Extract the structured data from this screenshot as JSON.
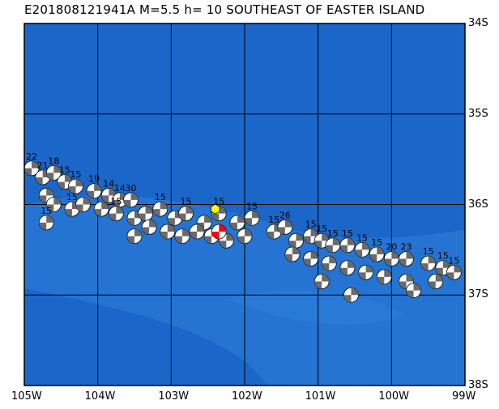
{
  "title": "E201808121941A M=5.5 h= 10 SOUTHEAST OF EASTER ISLAND",
  "colors": {
    "ocean_deep": "#1b66c9",
    "ocean_shallow": "#2a7ad6",
    "grid": "#000000",
    "mechanism_fill": "#6a6a6a",
    "mechanism_light": "#ffffff",
    "mainshock": "#ff0000",
    "highlight": "#ffff00"
  },
  "axes": {
    "lon_labels": [
      "105W",
      "104W",
      "103W",
      "102W",
      "101W",
      "100W",
      "99W"
    ],
    "lat_labels": [
      "34S",
      "35S",
      "36S",
      "37S",
      "38S"
    ],
    "lon_range": [
      -105,
      -99
    ],
    "lat_range": [
      -38,
      -34
    ]
  },
  "events": [
    {
      "lon": -104.9,
      "lat": -35.6,
      "label": "22"
    },
    {
      "lon": -104.75,
      "lat": -35.7,
      "label": "21"
    },
    {
      "lon": -104.6,
      "lat": -35.65,
      "label": "18"
    },
    {
      "lon": -104.45,
      "lat": -35.75,
      "label": "15"
    },
    {
      "lon": -104.7,
      "lat": -35.9,
      "label": ""
    },
    {
      "lon": -104.3,
      "lat": -35.8,
      "label": "15"
    },
    {
      "lon": -104.05,
      "lat": -35.85,
      "label": "19"
    },
    {
      "lon": -103.85,
      "lat": -35.9,
      "label": "14"
    },
    {
      "lon": -103.7,
      "lat": -35.95,
      "label": "14"
    },
    {
      "lon": -103.55,
      "lat": -35.95,
      "label": "30"
    },
    {
      "lon": -104.6,
      "lat": -36.0,
      "label": ""
    },
    {
      "lon": -104.35,
      "lat": -36.05,
      "label": "15"
    },
    {
      "lon": -104.2,
      "lat": -36.0,
      "label": ""
    },
    {
      "lon": -103.95,
      "lat": -36.05,
      "label": ""
    },
    {
      "lon": -103.75,
      "lat": -36.1,
      "label": "15"
    },
    {
      "lon": -103.5,
      "lat": -36.15,
      "label": ""
    },
    {
      "lon": -103.35,
      "lat": -36.1,
      "label": ""
    },
    {
      "lon": -103.15,
      "lat": -36.05,
      "label": "15"
    },
    {
      "lon": -102.95,
      "lat": -36.15,
      "label": ""
    },
    {
      "lon": -102.8,
      "lat": -36.1,
      "label": "15"
    },
    {
      "lon": -102.55,
      "lat": -36.2,
      "label": ""
    },
    {
      "lon": -102.35,
      "lat": -36.1,
      "label": "15"
    },
    {
      "lon": -102.1,
      "lat": -36.2,
      "label": ""
    },
    {
      "lon": -101.9,
      "lat": -36.15,
      "label": "15"
    },
    {
      "lon": -103.5,
      "lat": -36.35,
      "label": ""
    },
    {
      "lon": -103.3,
      "lat": -36.25,
      "label": ""
    },
    {
      "lon": -103.05,
      "lat": -36.3,
      "label": ""
    },
    {
      "lon": -102.85,
      "lat": -36.35,
      "label": ""
    },
    {
      "lon": -102.65,
      "lat": -36.3,
      "label": ""
    },
    {
      "lon": -102.45,
      "lat": -36.35,
      "label": ""
    },
    {
      "lon": -102.25,
      "lat": -36.4,
      "label": ""
    },
    {
      "lon": -102.0,
      "lat": -36.35,
      "label": ""
    },
    {
      "lon": -104.7,
      "lat": -36.2,
      "label": "15"
    },
    {
      "lon": -101.6,
      "lat": -36.3,
      "label": "15"
    },
    {
      "lon": -101.45,
      "lat": -36.25,
      "label": "26"
    },
    {
      "lon": -101.3,
      "lat": -36.4,
      "label": ""
    },
    {
      "lon": -101.1,
      "lat": -36.35,
      "label": "15"
    },
    {
      "lon": -100.95,
      "lat": -36.4,
      "label": "15"
    },
    {
      "lon": -100.8,
      "lat": -36.45,
      "label": "15"
    },
    {
      "lon": -100.6,
      "lat": -36.45,
      "label": "15"
    },
    {
      "lon": -100.4,
      "lat": -36.5,
      "label": "15"
    },
    {
      "lon": -100.2,
      "lat": -36.55,
      "label": "15"
    },
    {
      "lon": -100.0,
      "lat": -36.6,
      "label": "20"
    },
    {
      "lon": -99.8,
      "lat": -36.6,
      "label": "23"
    },
    {
      "lon": -99.5,
      "lat": -36.65,
      "label": "15"
    },
    {
      "lon": -99.3,
      "lat": -36.7,
      "label": "15"
    },
    {
      "lon": -99.15,
      "lat": -36.75,
      "label": "15"
    },
    {
      "lon": -101.35,
      "lat": -36.55,
      "label": ""
    },
    {
      "lon": -101.1,
      "lat": -36.6,
      "label": ""
    },
    {
      "lon": -100.85,
      "lat": -36.65,
      "label": ""
    },
    {
      "lon": -100.6,
      "lat": -36.7,
      "label": ""
    },
    {
      "lon": -100.35,
      "lat": -36.75,
      "label": ""
    },
    {
      "lon": -100.1,
      "lat": -36.8,
      "label": ""
    },
    {
      "lon": -99.8,
      "lat": -36.85,
      "label": ""
    },
    {
      "lon": -99.4,
      "lat": -36.85,
      "label": ""
    },
    {
      "lon": -100.55,
      "lat": -37.0,
      "label": ""
    },
    {
      "lon": -99.7,
      "lat": -36.95,
      "label": ""
    },
    {
      "lon": -100.95,
      "lat": -36.85,
      "label": ""
    }
  ],
  "mainshock": {
    "lon": -102.35,
    "lat": -36.3
  },
  "highlight": {
    "lon": -102.4,
    "lat": -36.05
  }
}
